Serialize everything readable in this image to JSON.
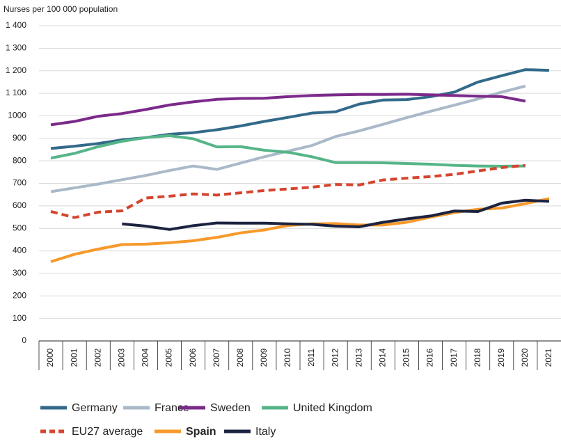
{
  "chart_data": {
    "type": "line",
    "y_label": "Nurses per 100 000 population",
    "categories": [
      "2000",
      "2001",
      "2002",
      "2003",
      "2004",
      "2005",
      "2006",
      "2007",
      "2008",
      "2009",
      "2010",
      "2011",
      "2012",
      "2013",
      "2014",
      "2015",
      "2016",
      "2017",
      "2018",
      "2019",
      "2020",
      "2021"
    ],
    "ylim": [
      0,
      1400
    ],
    "yticks": [
      0,
      100,
      200,
      300,
      400,
      500,
      600,
      700,
      800,
      900,
      {
        "value": 1000,
        "label": "1000"
      },
      {
        "value": 1100,
        "label": "1 100"
      },
      {
        "value": 1200,
        "label": "1 200"
      },
      {
        "value": 1300,
        "label": "1 300"
      },
      {
        "value": 1400,
        "label": "1 400"
      }
    ],
    "grid": true,
    "series": [
      {
        "name": "Germany",
        "color": "#336a8a",
        "values": [
          855,
          865,
          877,
          893,
          903,
          918,
          925,
          938,
          955,
          975,
          993,
          1012,
          1018,
          1052,
          1070,
          1072,
          1085,
          1105,
          1150,
          1178,
          1205,
          1202
        ]
      },
      {
        "name": "France",
        "color": "#aab9c9",
        "values": [
          663,
          680,
          697,
          716,
          735,
          757,
          777,
          762,
          790,
          818,
          843,
          868,
          908,
          933,
          962,
          992,
          1020,
          1047,
          1075,
          1105,
          1132,
          null
        ]
      },
      {
        "name": "Sweden",
        "color": "#7b2a8a",
        "values": [
          960,
          975,
          998,
          1010,
          1028,
          1048,
          1062,
          1073,
          1077,
          1078,
          1085,
          1090,
          1093,
          1095,
          1095,
          1096,
          1093,
          1090,
          1087,
          1085,
          1065,
          null
        ]
      },
      {
        "name": "United Kingdom",
        "color": "#55b589",
        "values": [
          812,
          833,
          863,
          887,
          903,
          912,
          898,
          862,
          863,
          847,
          838,
          818,
          792,
          792,
          791,
          788,
          785,
          780,
          777,
          776,
          777,
          null
        ]
      },
      {
        "name": "EU27 average",
        "color": "#d4452e",
        "dashed": true,
        "values": [
          575,
          548,
          572,
          578,
          635,
          643,
          653,
          648,
          658,
          668,
          675,
          683,
          695,
          693,
          715,
          723,
          730,
          740,
          755,
          770,
          780,
          null
        ]
      },
      {
        "name": "Spain",
        "color": "#f7992b",
        "bold": true,
        "values": [
          352,
          385,
          408,
          428,
          430,
          436,
          445,
          460,
          480,
          493,
          513,
          520,
          521,
          515,
          515,
          527,
          550,
          570,
          585,
          590,
          610,
          632
        ]
      },
      {
        "name": "Italy",
        "color": "#1c2340",
        "values": [
          null,
          null,
          null,
          520,
          510,
          495,
          512,
          524,
          523,
          523,
          520,
          518,
          510,
          507,
          527,
          542,
          555,
          577,
          575,
          612,
          625,
          620
        ]
      }
    ]
  }
}
